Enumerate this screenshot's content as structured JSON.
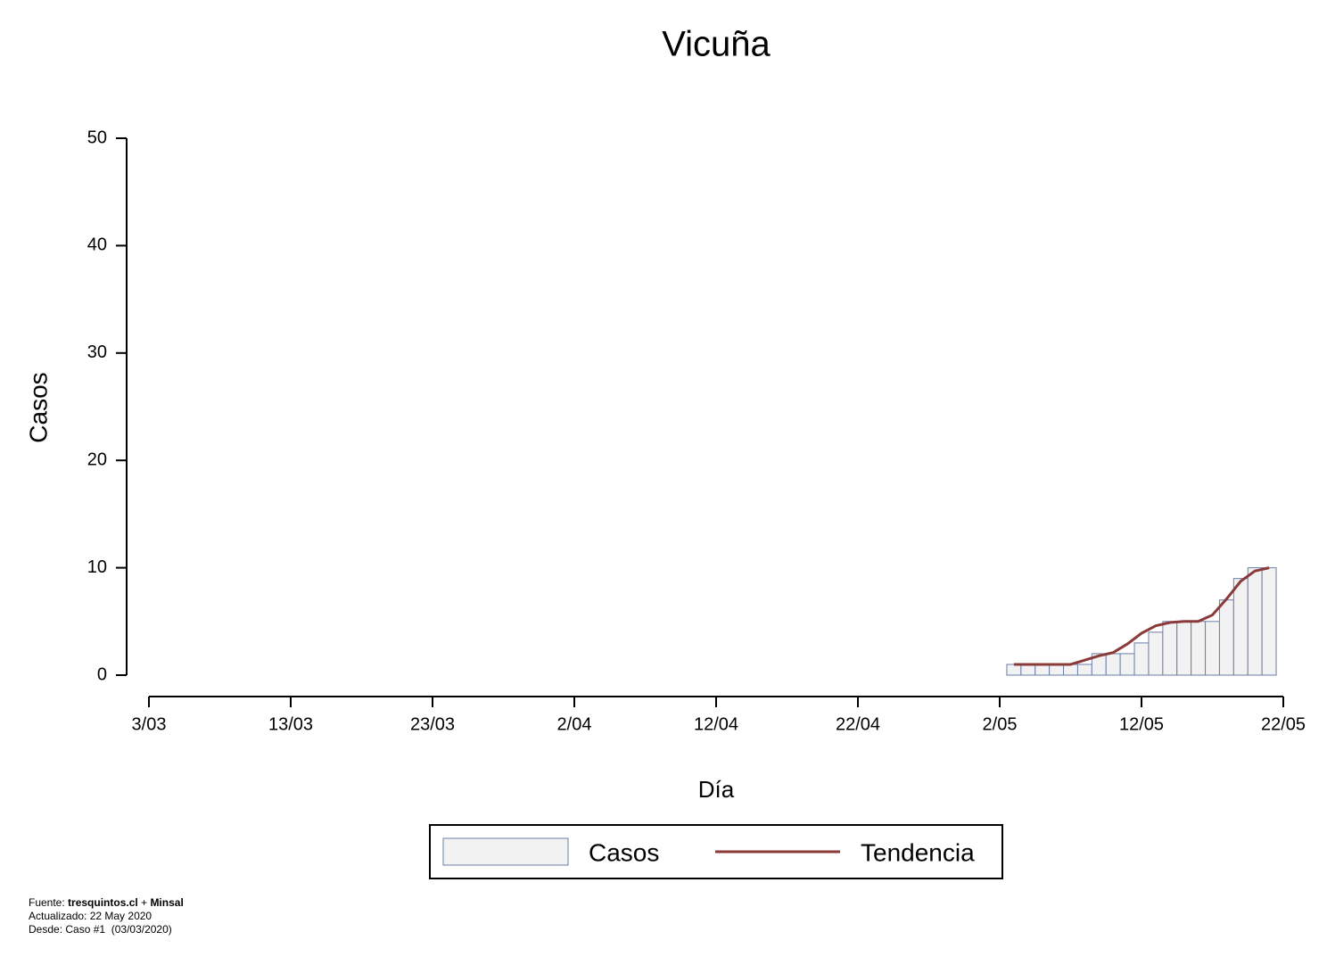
{
  "chart_data": {
    "type": "bar",
    "title": "Vicuña",
    "xlabel": "Día",
    "ylabel": "Casos",
    "x": [
      "3/05",
      "4/05",
      "5/05",
      "6/05",
      "7/05",
      "8/05",
      "9/05",
      "10/05",
      "11/05",
      "12/05",
      "13/05",
      "14/05",
      "15/05",
      "16/05",
      "17/05",
      "18/05",
      "19/05",
      "20/05",
      "21/05"
    ],
    "series": [
      {
        "name": "Casos",
        "type": "bar",
        "color": "#f2f2f2",
        "edgecolor": "#6b7fa8",
        "values": [
          1,
          1,
          1,
          1,
          1,
          1,
          2,
          2,
          2,
          3,
          4,
          5,
          5,
          5,
          5,
          7,
          9,
          10,
          10
        ]
      },
      {
        "name": "Tendencia",
        "type": "line",
        "color": "#8b3a3a",
        "values": [
          1,
          1,
          1,
          1,
          1,
          1.4,
          1.8,
          2.1,
          2.9,
          3.9,
          4.6,
          4.9,
          5,
          5,
          5.6,
          7.1,
          8.75,
          9.7,
          10
        ]
      }
    ],
    "xlim": [
      "3/03",
      "22/05"
    ],
    "xticks": [
      "3/03",
      "13/03",
      "23/03",
      "2/04",
      "12/04",
      "22/04",
      "2/05",
      "12/05",
      "22/05"
    ],
    "ylim": [
      0,
      50
    ],
    "yticks": [
      0,
      10,
      20,
      30,
      40,
      50
    ],
    "grid": false,
    "notes": {
      "source_label": "Fuente:",
      "source_site": "tresquintos.cl",
      "plus": "+",
      "source_org": "Minsal",
      "updated": "Actualizado: 22 May 2020",
      "since": "Desde: Caso #1  (03/03/2020)"
    }
  }
}
